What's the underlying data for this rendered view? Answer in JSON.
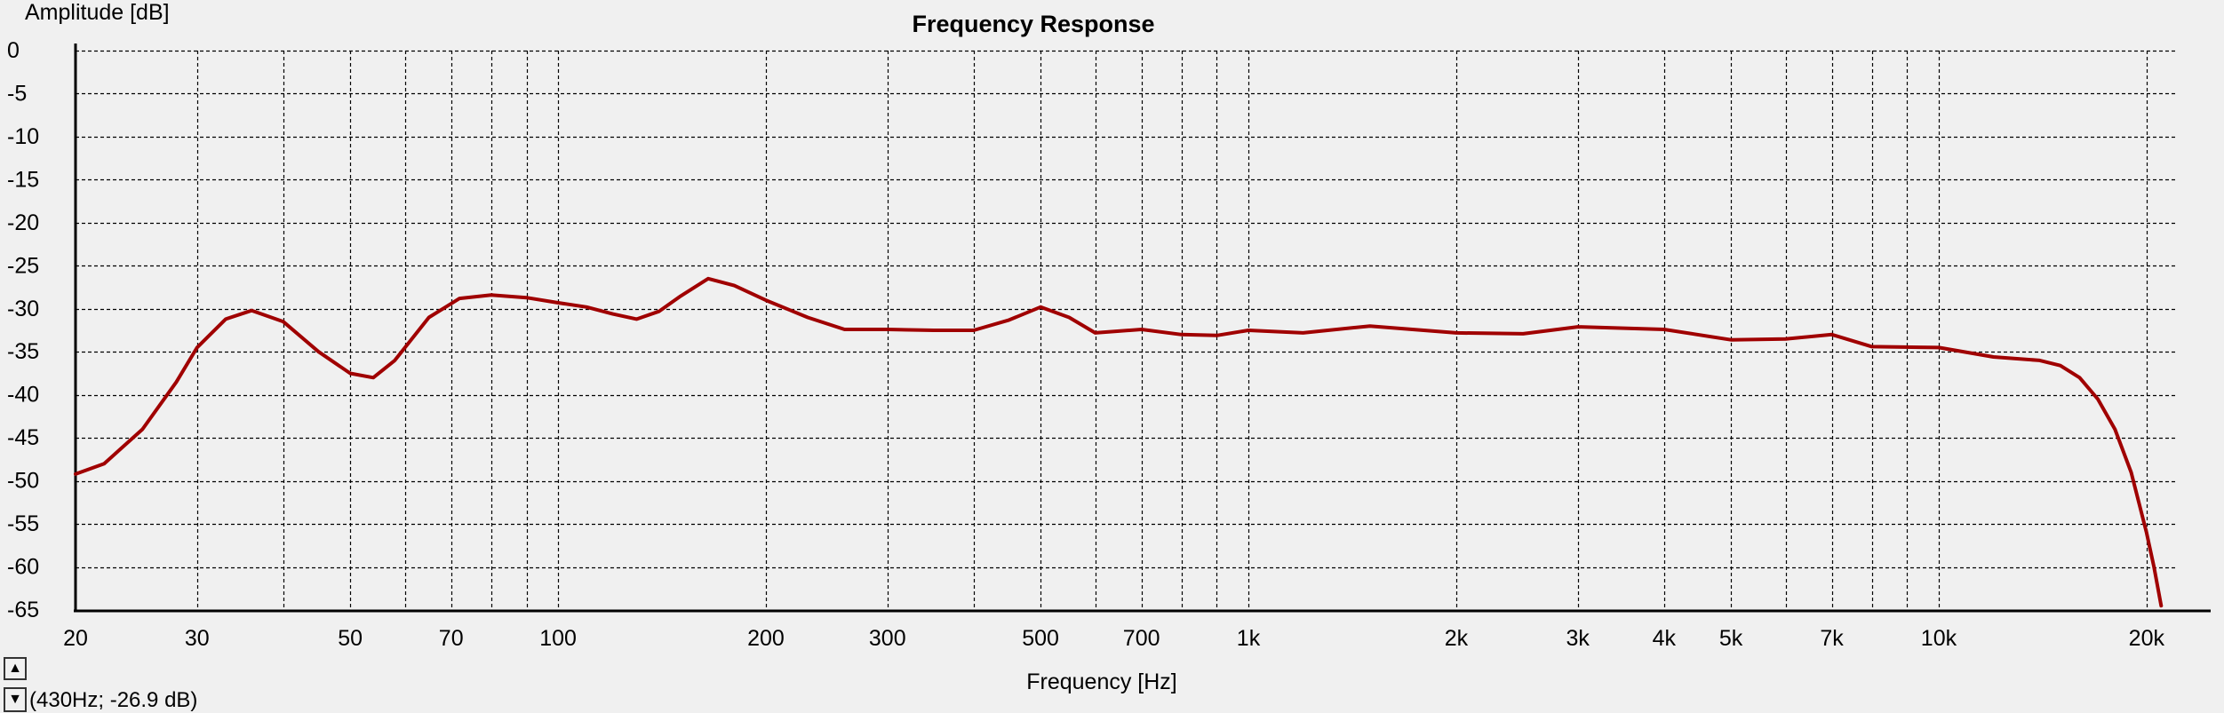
{
  "colors": {
    "background": "#f0f0f0",
    "grid": "#000000",
    "curve": "#a00000"
  },
  "icons": {
    "scroll_up": "triangle-up",
    "scroll_down": "triangle-down"
  },
  "cursor_readout": "(430Hz; -26.9 dB)",
  "chart_data": {
    "type": "line",
    "title": "Frequency Response",
    "xlabel": "Frequency [Hz]",
    "ylabel": "Amplitude [dB]",
    "xscale": "log",
    "xlim": [
      20,
      22000
    ],
    "ylim": [
      -65,
      0
    ],
    "grid": true,
    "x_ticks": [
      {
        "value": 20,
        "label": "20"
      },
      {
        "value": 30,
        "label": "30"
      },
      {
        "value": 50,
        "label": "50"
      },
      {
        "value": 70,
        "label": "70"
      },
      {
        "value": 100,
        "label": "100"
      },
      {
        "value": 200,
        "label": "200"
      },
      {
        "value": 300,
        "label": "300"
      },
      {
        "value": 500,
        "label": "500"
      },
      {
        "value": 700,
        "label": "700"
      },
      {
        "value": 1000,
        "label": "1k"
      },
      {
        "value": 2000,
        "label": "2k"
      },
      {
        "value": 3000,
        "label": "3k"
      },
      {
        "value": 4000,
        "label": "4k"
      },
      {
        "value": 5000,
        "label": "5k"
      },
      {
        "value": 7000,
        "label": "7k"
      },
      {
        "value": 10000,
        "label": "10k"
      },
      {
        "value": 20000,
        "label": "20k"
      }
    ],
    "x_grid": [
      20,
      30,
      40,
      50,
      60,
      70,
      80,
      90,
      100,
      200,
      300,
      400,
      500,
      600,
      700,
      800,
      900,
      1000,
      2000,
      3000,
      4000,
      5000,
      6000,
      7000,
      8000,
      9000,
      10000,
      20000
    ],
    "y_ticks": [
      {
        "value": 0,
        "label": "0"
      },
      {
        "value": -5,
        "label": "-5"
      },
      {
        "value": -10,
        "label": "-10"
      },
      {
        "value": -15,
        "label": "-15"
      },
      {
        "value": -20,
        "label": "-20"
      },
      {
        "value": -25,
        "label": "-25"
      },
      {
        "value": -30,
        "label": "-30"
      },
      {
        "value": -35,
        "label": "-35"
      },
      {
        "value": -40,
        "label": "-40"
      },
      {
        "value": -45,
        "label": "-45"
      },
      {
        "value": -50,
        "label": "-50"
      },
      {
        "value": -55,
        "label": "-55"
      },
      {
        "value": -60,
        "label": "-60"
      },
      {
        "value": -65,
        "label": "-65"
      }
    ],
    "series": [
      {
        "color": "#a00000",
        "x": [
          20,
          22,
          25,
          28,
          30,
          33,
          36,
          40,
          45,
          50,
          54,
          58,
          65,
          72,
          80,
          90,
          100,
          110,
          120,
          130,
          140,
          150,
          165,
          180,
          200,
          230,
          260,
          300,
          350,
          400,
          450,
          500,
          550,
          600,
          700,
          800,
          900,
          1000,
          1200,
          1500,
          2000,
          2500,
          3000,
          4000,
          5000,
          6000,
          7000,
          8000,
          10000,
          12000,
          14000,
          15000,
          16000,
          17000,
          18000,
          19000,
          20000,
          20500,
          21000
        ],
        "y": [
          -49.2,
          -48,
          -44,
          -38.5,
          -34.5,
          -31.2,
          -30.2,
          -31.5,
          -35,
          -37.5,
          -38,
          -36,
          -31,
          -28.8,
          -28.4,
          -28.7,
          -29.3,
          -29.8,
          -30.6,
          -31.2,
          -30.3,
          -28.6,
          -26.5,
          -27.3,
          -29,
          -31,
          -32.4,
          -32.4,
          -32.5,
          -32.5,
          -31.3,
          -29.8,
          -31,
          -32.8,
          -32.4,
          -33,
          -33.1,
          -32.5,
          -32.8,
          -32,
          -32.8,
          -32.9,
          -32.1,
          -32.4,
          -33.6,
          -33.5,
          -33,
          -34.4,
          -34.5,
          -35.6,
          -36,
          -36.6,
          -38,
          -40.5,
          -44,
          -49,
          -56,
          -60,
          -64.5
        ]
      }
    ]
  }
}
